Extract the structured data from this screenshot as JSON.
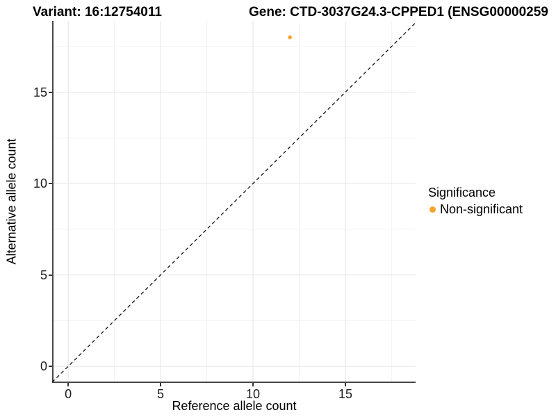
{
  "chart_data": {
    "type": "scatter",
    "title_left": "Variant: 16:12754011",
    "title_right": "Gene: CTD-3037G24.3-CPPED1 (ENSG00000259",
    "xlabel": "Reference allele count",
    "ylabel": "Alternative allele count",
    "xlim": [
      -0.87,
      18.8
    ],
    "ylim": [
      -0.91,
      18.9
    ],
    "x_ticks": [
      0,
      5,
      10,
      15
    ],
    "y_ticks": [
      0,
      5,
      10,
      15
    ],
    "x_minor_ticks": [
      2.5,
      7.5,
      12.5,
      17.5
    ],
    "y_minor_ticks": [
      2.5,
      7.5,
      12.5,
      17.5
    ],
    "grid": "major+minor",
    "legend_position": "right",
    "reference_line": {
      "type": "identity y=x",
      "style": "dashed"
    },
    "series": [
      {
        "name": "Non-significant",
        "color": "#F9A22C",
        "points": [
          {
            "x": 12,
            "y": 18
          }
        ]
      }
    ],
    "legend": {
      "title": "Significance",
      "entries": [
        {
          "label": "Non-significant",
          "color": "#F9A22C"
        }
      ]
    },
    "colors": {
      "point": "#F9A22C",
      "grid_major": "#e4e4e4",
      "grid_minor": "#f3f3f3",
      "axis_line": "#474747",
      "tick_mark": "#333333",
      "reference_line": "#141414"
    }
  }
}
